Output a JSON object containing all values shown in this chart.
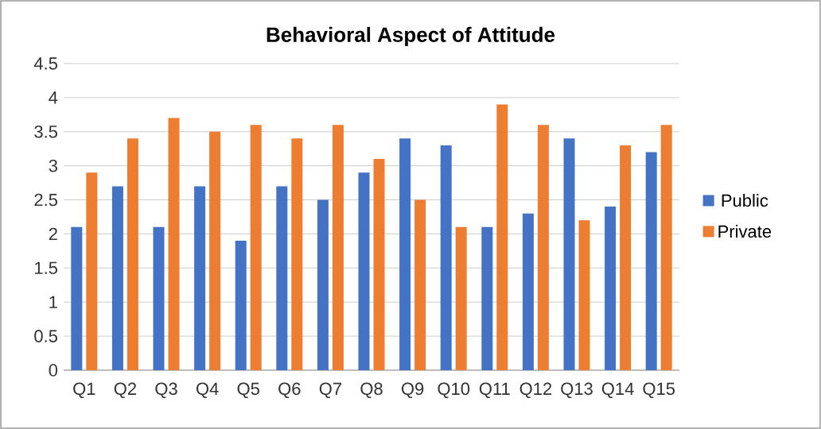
{
  "chart_data": {
    "type": "bar",
    "title": "Behavioral Aspect of Attitude",
    "categories": [
      "Q1",
      "Q2",
      "Q3",
      "Q4",
      "Q5",
      "Q6",
      "Q7",
      "Q8",
      "Q9",
      "Q10",
      "Q11",
      "Q12",
      "Q13",
      "Q14",
      "Q15"
    ],
    "series": [
      {
        "name": "Public",
        "color": "#4472c4",
        "values": [
          2.1,
          2.7,
          2.1,
          2.7,
          1.9,
          2.7,
          2.5,
          2.9,
          3.4,
          3.3,
          2.1,
          2.3,
          3.4,
          2.4,
          3.2
        ]
      },
      {
        "name": "Private",
        "color": "#ed7d31",
        "values": [
          2.9,
          3.4,
          3.7,
          3.5,
          3.6,
          3.4,
          3.6,
          3.1,
          2.5,
          2.1,
          3.9,
          3.6,
          2.2,
          3.3,
          3.6
        ]
      }
    ],
    "ylim": [
      0,
      4.5
    ],
    "yticks": [
      0,
      0.5,
      1,
      1.5,
      2,
      2.5,
      3,
      3.5,
      4,
      4.5
    ],
    "grid": "y",
    "legend": "right"
  }
}
